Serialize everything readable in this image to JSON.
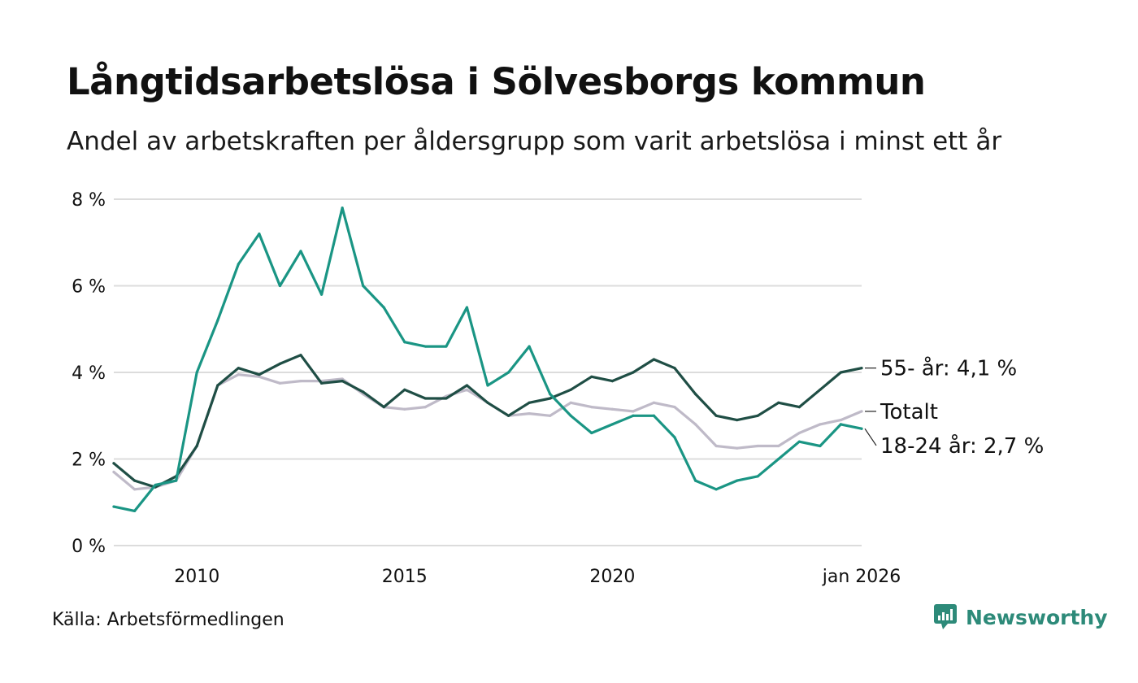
{
  "header": {
    "title": "Långtidsarbetslösa i Sölvesborgs kommun",
    "subtitle": "Andel av arbetskraften per åldersgrupp som varit arbetslösa i minst ett år"
  },
  "footer": {
    "source": "Källa: Arbetsförmedlingen",
    "brand": "Newsworthy",
    "brand_icon": "newsworthy-logo-icon",
    "brand_color": "#2d8a79"
  },
  "chart_data": {
    "type": "line",
    "title": "Långtidsarbetslösa i Sölvesborgs kommun",
    "xlabel": "",
    "ylabel": "",
    "xlim": [
      2008.0,
      2026.0
    ],
    "ylim": [
      0,
      8
    ],
    "grid": true,
    "yticks": [
      0,
      2,
      4,
      6,
      8
    ],
    "ytick_labels": [
      "0 %",
      "2 %",
      "4 %",
      "6 %",
      "8 %"
    ],
    "xticks": [
      2010,
      2015,
      2020,
      2026.0
    ],
    "xtick_labels": [
      "2010",
      "2015",
      "2020",
      "jan 2026"
    ],
    "series": [
      {
        "name": "Totalt",
        "end_label": "Totalt",
        "color": "#bfbac8",
        "points": [
          [
            2008.0,
            1.7
          ],
          [
            2008.5,
            1.3
          ],
          [
            2009.0,
            1.35
          ],
          [
            2009.5,
            1.5
          ],
          [
            2010.0,
            2.3
          ],
          [
            2010.5,
            3.7
          ],
          [
            2011.0,
            3.95
          ],
          [
            2011.5,
            3.9
          ],
          [
            2012.0,
            3.75
          ],
          [
            2012.5,
            3.8
          ],
          [
            2013.0,
            3.8
          ],
          [
            2013.5,
            3.85
          ],
          [
            2014.0,
            3.5
          ],
          [
            2014.5,
            3.2
          ],
          [
            2015.0,
            3.15
          ],
          [
            2015.5,
            3.2
          ],
          [
            2016.0,
            3.45
          ],
          [
            2016.5,
            3.6
          ],
          [
            2017.0,
            3.3
          ],
          [
            2017.5,
            3.0
          ],
          [
            2018.0,
            3.05
          ],
          [
            2018.5,
            3.0
          ],
          [
            2019.0,
            3.3
          ],
          [
            2019.5,
            3.2
          ],
          [
            2020.0,
            3.15
          ],
          [
            2020.5,
            3.1
          ],
          [
            2021.0,
            3.3
          ],
          [
            2021.5,
            3.2
          ],
          [
            2022.0,
            2.8
          ],
          [
            2022.5,
            2.3
          ],
          [
            2023.0,
            2.25
          ],
          [
            2023.5,
            2.3
          ],
          [
            2024.0,
            2.3
          ],
          [
            2024.5,
            2.6
          ],
          [
            2025.0,
            2.8
          ],
          [
            2025.5,
            2.9
          ],
          [
            2026.0,
            3.1
          ]
        ]
      },
      {
        "name": "55- år",
        "end_label": "55- år: 4,1 %",
        "color": "#1f4e45",
        "points": [
          [
            2008.0,
            1.9
          ],
          [
            2008.5,
            1.5
          ],
          [
            2009.0,
            1.35
          ],
          [
            2009.5,
            1.6
          ],
          [
            2010.0,
            2.3
          ],
          [
            2010.5,
            3.7
          ],
          [
            2011.0,
            4.1
          ],
          [
            2011.5,
            3.95
          ],
          [
            2012.0,
            4.2
          ],
          [
            2012.5,
            4.4
          ],
          [
            2013.0,
            3.75
          ],
          [
            2013.5,
            3.8
          ],
          [
            2014.0,
            3.55
          ],
          [
            2014.5,
            3.2
          ],
          [
            2015.0,
            3.6
          ],
          [
            2015.5,
            3.4
          ],
          [
            2016.0,
            3.4
          ],
          [
            2016.5,
            3.7
          ],
          [
            2017.0,
            3.3
          ],
          [
            2017.5,
            3.0
          ],
          [
            2018.0,
            3.3
          ],
          [
            2018.5,
            3.4
          ],
          [
            2019.0,
            3.6
          ],
          [
            2019.5,
            3.9
          ],
          [
            2020.0,
            3.8
          ],
          [
            2020.5,
            4.0
          ],
          [
            2021.0,
            4.3
          ],
          [
            2021.5,
            4.1
          ],
          [
            2022.0,
            3.5
          ],
          [
            2022.5,
            3.0
          ],
          [
            2023.0,
            2.9
          ],
          [
            2023.5,
            3.0
          ],
          [
            2024.0,
            3.3
          ],
          [
            2024.5,
            3.2
          ],
          [
            2025.0,
            3.6
          ],
          [
            2025.5,
            4.0
          ],
          [
            2026.0,
            4.1
          ]
        ]
      },
      {
        "name": "18-24 år",
        "end_label": "18-24 år: 2,7 %",
        "color": "#1a9584",
        "points": [
          [
            2008.0,
            0.9
          ],
          [
            2008.5,
            0.8
          ],
          [
            2009.0,
            1.4
          ],
          [
            2009.5,
            1.5
          ],
          [
            2010.0,
            4.0
          ],
          [
            2010.5,
            5.2
          ],
          [
            2011.0,
            6.5
          ],
          [
            2011.5,
            7.2
          ],
          [
            2012.0,
            6.0
          ],
          [
            2012.5,
            6.8
          ],
          [
            2013.0,
            5.8
          ],
          [
            2013.5,
            7.8
          ],
          [
            2014.0,
            6.0
          ],
          [
            2014.5,
            5.5
          ],
          [
            2015.0,
            4.7
          ],
          [
            2015.5,
            4.6
          ],
          [
            2016.0,
            4.6
          ],
          [
            2016.5,
            5.5
          ],
          [
            2017.0,
            3.7
          ],
          [
            2017.5,
            4.0
          ],
          [
            2018.0,
            4.6
          ],
          [
            2018.5,
            3.5
          ],
          [
            2019.0,
            3.0
          ],
          [
            2019.5,
            2.6
          ],
          [
            2020.0,
            2.8
          ],
          [
            2020.5,
            3.0
          ],
          [
            2021.0,
            3.0
          ],
          [
            2021.5,
            2.5
          ],
          [
            2022.0,
            1.5
          ],
          [
            2022.5,
            1.3
          ],
          [
            2023.0,
            1.5
          ],
          [
            2023.5,
            1.6
          ],
          [
            2024.0,
            2.0
          ],
          [
            2024.5,
            2.4
          ],
          [
            2025.0,
            2.3
          ],
          [
            2025.5,
            2.8
          ],
          [
            2026.0,
            2.7
          ]
        ]
      }
    ]
  }
}
